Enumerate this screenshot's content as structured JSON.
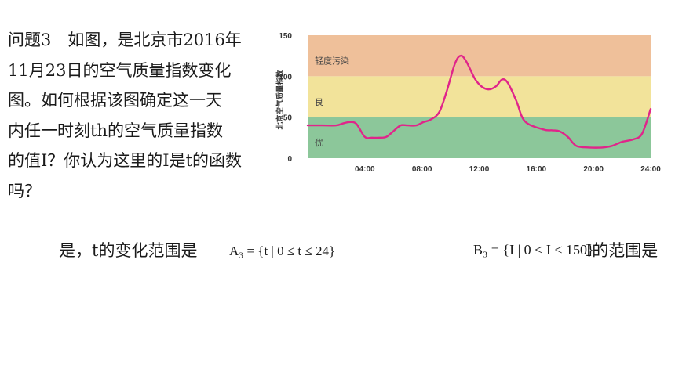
{
  "question": {
    "lines": [
      "问题3　如图，是北京市2016年",
      "11月23日的空气质量指数变化",
      "图。如何根据该图确定这一天",
      "内任一时刻th的空气质量指数",
      "的值I？你认为这里的I是t的函数",
      "吗？"
    ]
  },
  "answer": {
    "text": "是，t的变化范围是",
    "set_a": "A₃ = {t | 0 ≤ t ≤ 24}",
    "set_b": "B₃ = {I | 0 < I < 150}",
    "i_range_text": "I的范围是"
  },
  "chart_data": {
    "type": "line",
    "title": "",
    "ylabel": "北京空气质量指数",
    "xlabel": "",
    "xlim": [
      0,
      24
    ],
    "ylim": [
      0,
      150
    ],
    "x_ticks": [
      "04:00",
      "08:00",
      "12:00",
      "16:00",
      "20:00",
      "24:00"
    ],
    "y_ticks": [
      0,
      50,
      100,
      150
    ],
    "bands": [
      {
        "label": "优",
        "from": 0,
        "to": 50,
        "color": "#8cc79a"
      },
      {
        "label": "良",
        "from": 50,
        "to": 100,
        "color": "#f2e39a"
      },
      {
        "label": "轻度污染",
        "from": 100,
        "to": 150,
        "color": "#efc09a"
      }
    ],
    "line_color": "#e0258a",
    "grid": false,
    "series": [
      {
        "x": [
          0,
          1,
          2,
          2.4,
          2.9,
          3.4,
          4,
          4.5,
          5,
          5.5,
          6,
          6.5,
          7,
          7.6,
          8.1,
          8.6,
          9.2,
          9.7,
          10.3,
          10.7,
          11.1,
          11.7,
          12.2,
          12.7,
          13.2,
          13.6,
          14,
          14.6,
          15.2,
          16.5,
          17.1,
          17.6,
          18.2,
          18.8,
          19.7,
          20.6,
          21.3,
          22,
          22.8,
          23.4,
          24
        ],
        "y": [
          40,
          40,
          40,
          42,
          44,
          42,
          26,
          25,
          25,
          26,
          33,
          40,
          40,
          40,
          44,
          47,
          56,
          80,
          115,
          125,
          118,
          97,
          87,
          84,
          88,
          96,
          92,
          70,
          45,
          35,
          34,
          33,
          26,
          15,
          13,
          13,
          15,
          20,
          23,
          30,
          60
        ]
      }
    ]
  }
}
